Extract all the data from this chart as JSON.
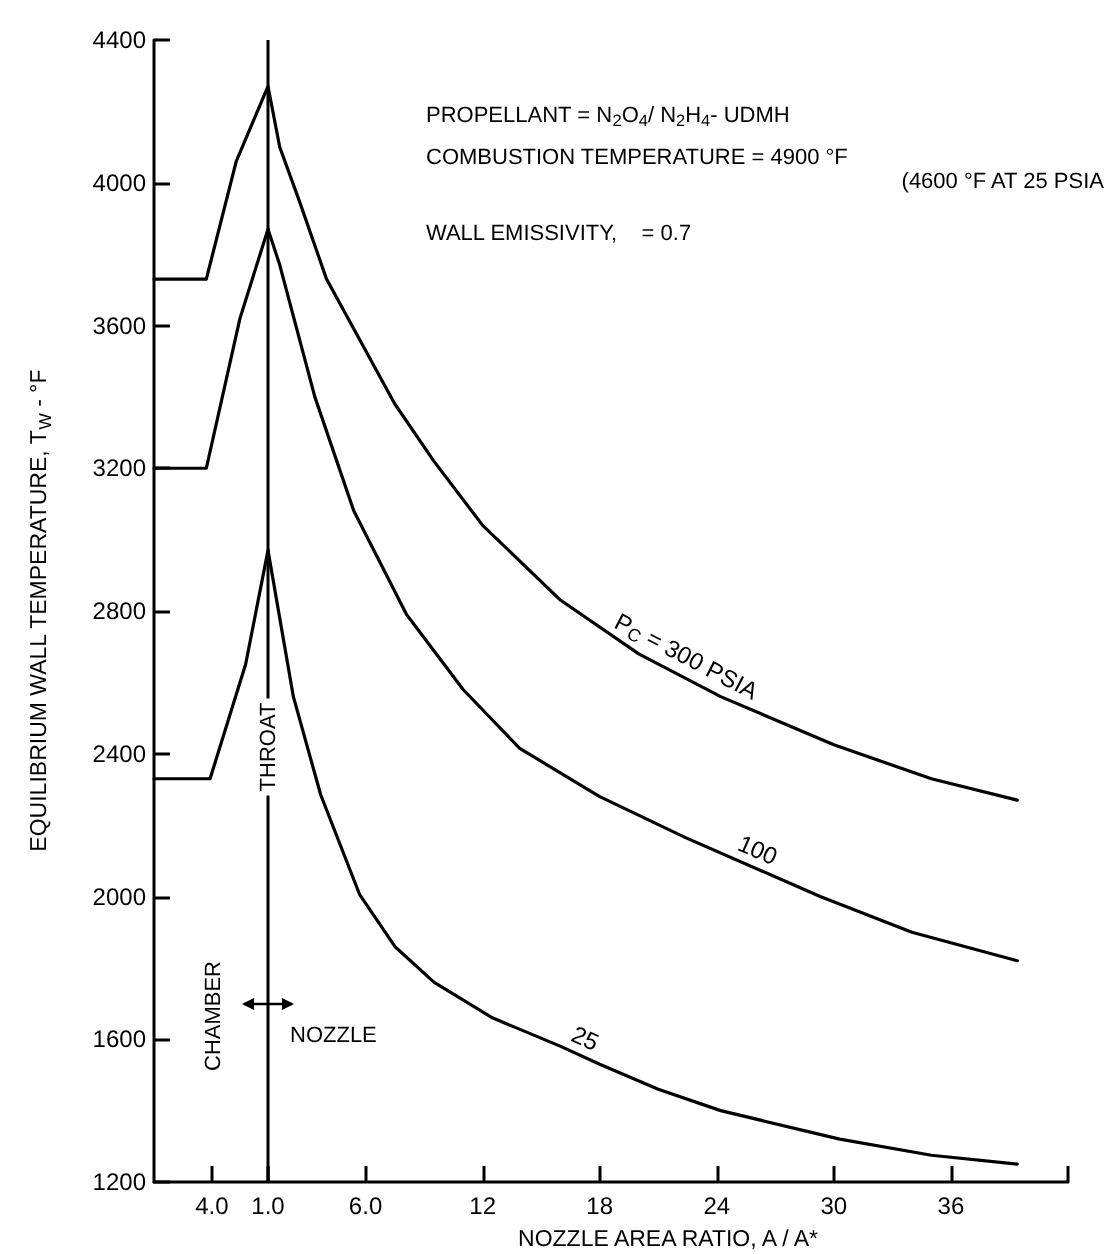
{
  "chart_data": [
    {
      "type": "line",
      "ylabel": "EQUILIBRIUM WALL TEMPERATURE, T$_{W}$ - °F",
      "xlim": [
        7.1,
        1
      ],
      "ylim": [
        1200,
        4400
      ],
      "xticks": [
        {
          "value": 4,
          "label": "4.0"
        },
        {
          "value": 1,
          "label": "1.0"
        }
      ],
      "yticks": [
        1200,
        1600,
        2000,
        2400,
        2800,
        3200,
        3600,
        4000,
        4400
      ],
      "series": [
        {
          "color": "#000000",
          "x": [
            7.1,
            4.3,
            2.7,
            1
          ],
          "values": [
            3730,
            3730,
            4060,
            4270
          ]
        },
        {
          "color": "#000000",
          "x": [
            7.1,
            4.3,
            2.5,
            1
          ],
          "values": [
            3200,
            3200,
            3620,
            3870
          ]
        },
        {
          "color": "#000000",
          "x": [
            7.1,
            4.1,
            2.2,
            1
          ],
          "values": [
            2330,
            2330,
            2650,
            2970
          ]
        }
      ],
      "ref_lines": [
        {
          "axis": "x",
          "value": 1,
          "label": "THROAT",
          "color": "#000000"
        }
      ],
      "annotations": [
        "CHAMBER"
      ],
      "grid": false,
      "legend": false,
      "marker": "none",
      "line_style": "solid"
    },
    {
      "type": "line",
      "xlabel": "NOZZLE AREA RATIO, A / A*",
      "xlim": [
        1,
        42
      ],
      "ylim": [
        1200,
        4400
      ],
      "xticks": [
        {
          "value": 1,
          "label": null
        },
        {
          "value": 6,
          "label": "6.0"
        },
        12,
        18,
        24,
        30,
        36,
        {
          "value": 42,
          "label": null
        }
      ],
      "yticks": [
        1200,
        1600,
        2000,
        2400,
        2800,
        3200,
        3600,
        4000,
        4400
      ],
      "tick_labels": "x",
      "series": [
        {
          "name": "P$_{C}$ = 300 PSIA",
          "color": "#000000",
          "x": [
            1,
            1.6,
            2.6,
            4,
            5.7,
            7.5,
            9.5,
            12,
            16,
            20,
            24.2,
            30,
            35,
            39.4
          ],
          "values": [
            4270,
            4100,
            3950,
            3730,
            3560,
            3380,
            3220,
            3040,
            2830,
            2680,
            2560,
            2425,
            2330,
            2270
          ]
        },
        {
          "name": "100",
          "color": "#000000",
          "x": [
            1,
            1.6,
            3.4,
            5.4,
            8.1,
            11,
            13.9,
            18,
            22.4,
            29.3,
            34,
            39.4
          ],
          "values": [
            3870,
            3770,
            3400,
            3080,
            2790,
            2580,
            2415,
            2280,
            2165,
            2000,
            1900,
            1820
          ]
        },
        {
          "name": "25",
          "color": "#000000",
          "x": [
            1,
            2.3,
            3.7,
            5.7,
            7.5,
            9.5,
            12.5,
            16,
            18,
            21,
            24.2,
            30.3,
            35,
            39.4
          ],
          "values": [
            2970,
            2560,
            2285,
            2005,
            1860,
            1760,
            1660,
            1580,
            1530,
            1460,
            1400,
            1320,
            1275,
            1250
          ]
        }
      ],
      "annotations": [
        "PROPELLANT = N$_{2}$O$_{4}$/ N$_{2}$H$_{4}$- UDMH",
        "COMBUSTION TEMPERATURE = 4900 °F",
        "(4600 °F AT 25 PSIA",
        "WALL EMISSIVITY,    = 0.7",
        "NOZZLE"
      ],
      "grid": false,
      "legend": false,
      "marker": "none",
      "line_style": "solid"
    }
  ]
}
